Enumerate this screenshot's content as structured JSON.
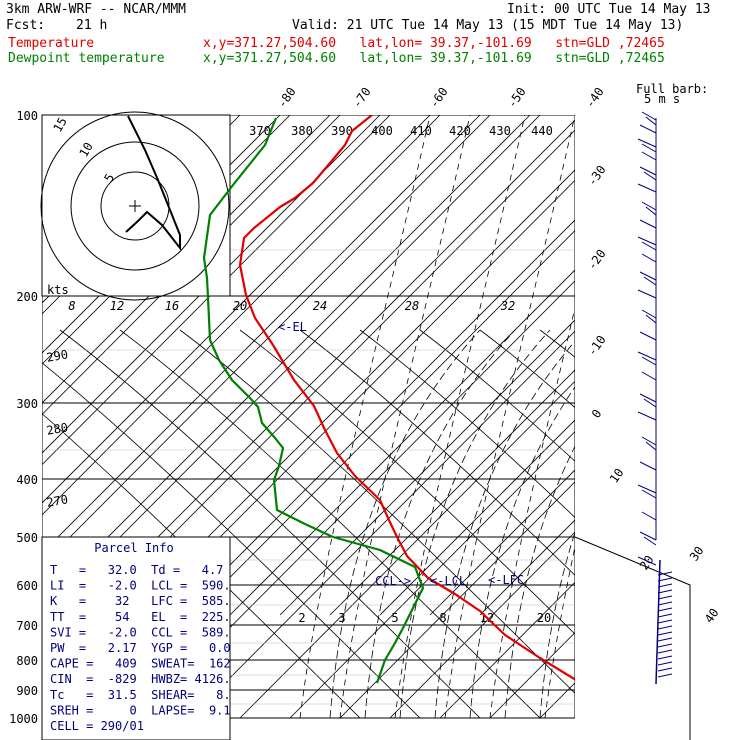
{
  "header": {
    "model": "3km ARW-WRF -- NCAR/MMM",
    "init": "Init: 00 UTC Tue 14 May 13",
    "fcst_label": "Fcst:",
    "fcst_value": "21 h",
    "valid": "Valid: 21 UTC Tue 14 May 13 (15 MDT Tue 14 May 13)",
    "temp_label": "Temperature",
    "temp_loc": "x,y=371.27,504.60   lat,lon= 39.37,-101.69   stn=GLD ,72465",
    "dew_label": "Dewpoint temperature",
    "dew_loc": "x,y=371.27,504.60   lat,lon= 39.37,-101.69   stn=GLD ,72465"
  },
  "wind_legend": {
    "title": "Full barb:",
    "value": "5 m s"
  },
  "chart_data": {
    "type": "line",
    "title": "",
    "ylabel": "",
    "pressure_levels": [
      100,
      200,
      300,
      400,
      500,
      600,
      700,
      800,
      900,
      1000
    ],
    "isotherm_labels": [
      "-80",
      "-70",
      "-60",
      "-50",
      "-40",
      "-30",
      "-20",
      "-10",
      "0",
      "10",
      "20",
      "30",
      "40"
    ],
    "theta_labels": [
      "370",
      "380",
      "390",
      "400",
      "410",
      "420",
      "430",
      "440"
    ],
    "mixing_ratio_labels": [
      "2",
      "3",
      "5",
      "8",
      "12",
      "20"
    ],
    "theta_left_labels": [
      "290",
      "280",
      "270"
    ],
    "hodograph_speed_labels": [
      "8",
      "12",
      "16",
      "20",
      "24",
      "28",
      "32"
    ],
    "hodograph_unit": "kts",
    "hodograph_ring_labels": [
      "5",
      "10",
      "15"
    ],
    "level_markers": [
      "<-EL",
      "CCL->",
      "<-LCL",
      "<-LFC"
    ],
    "series": [
      {
        "name": "Temperature",
        "color": "#e00000",
        "points": [
          [
            584,
            685
          ],
          [
            540,
            658
          ],
          [
            505,
            635
          ],
          [
            480,
            611
          ],
          [
            455,
            594
          ],
          [
            428,
            578
          ],
          [
            407,
            556
          ],
          [
            397,
            537
          ],
          [
            388,
            518
          ],
          [
            380,
            500
          ],
          [
            355,
            476
          ],
          [
            337,
            453
          ],
          [
            325,
            430
          ],
          [
            314,
            406
          ],
          [
            294,
            380
          ],
          [
            273,
            345
          ],
          [
            255,
            318
          ],
          [
            246,
            295
          ],
          [
            240,
            265
          ],
          [
            244,
            238
          ],
          [
            254,
            228
          ],
          [
            280,
            207
          ],
          [
            295,
            198
          ],
          [
            313,
            183
          ],
          [
            330,
            163
          ],
          [
            345,
            145
          ],
          [
            352,
            131
          ],
          [
            372,
            115
          ]
        ]
      },
      {
        "name": "Dewpoint temperature",
        "color": "#008000",
        "points": [
          [
            377,
            683
          ],
          [
            385,
            660
          ],
          [
            395,
            643
          ],
          [
            403,
            628
          ],
          [
            414,
            606
          ],
          [
            423,
            588
          ],
          [
            415,
            567
          ],
          [
            380,
            550
          ],
          [
            333,
            537
          ],
          [
            305,
            524
          ],
          [
            277,
            510
          ],
          [
            274,
            480
          ],
          [
            279,
            466
          ],
          [
            283,
            448
          ],
          [
            275,
            438
          ],
          [
            262,
            423
          ],
          [
            258,
            407
          ],
          [
            250,
            398
          ],
          [
            240,
            388
          ],
          [
            232,
            380
          ],
          [
            219,
            360
          ],
          [
            210,
            340
          ],
          [
            208,
            298
          ],
          [
            207,
            278
          ],
          [
            204,
            258
          ],
          [
            210,
            215
          ],
          [
            233,
            185
          ],
          [
            253,
            160
          ],
          [
            265,
            145
          ],
          [
            276,
            118
          ]
        ]
      }
    ]
  },
  "parcel_info": {
    "title": "Parcel Info",
    "rows": [
      "T   =   32.0  Td =   4.7",
      "LI  =   -2.0  LCL =  590.",
      "K   =    32   LFC =  585.",
      "TT  =    54   EL  =  225.",
      "SVI =   -2.0  CCL =  589.",
      "PW  =   2.17  YGP =   0.0",
      "CAPE =   409  SWEAT=  162",
      "CIN  =  -829  HWBZ= 4126.",
      "Tc   =  31.5  SHEAR=   8.",
      "SREH =     0  LAPSE=  9.1",
      "CELL = 290/01"
    ]
  }
}
